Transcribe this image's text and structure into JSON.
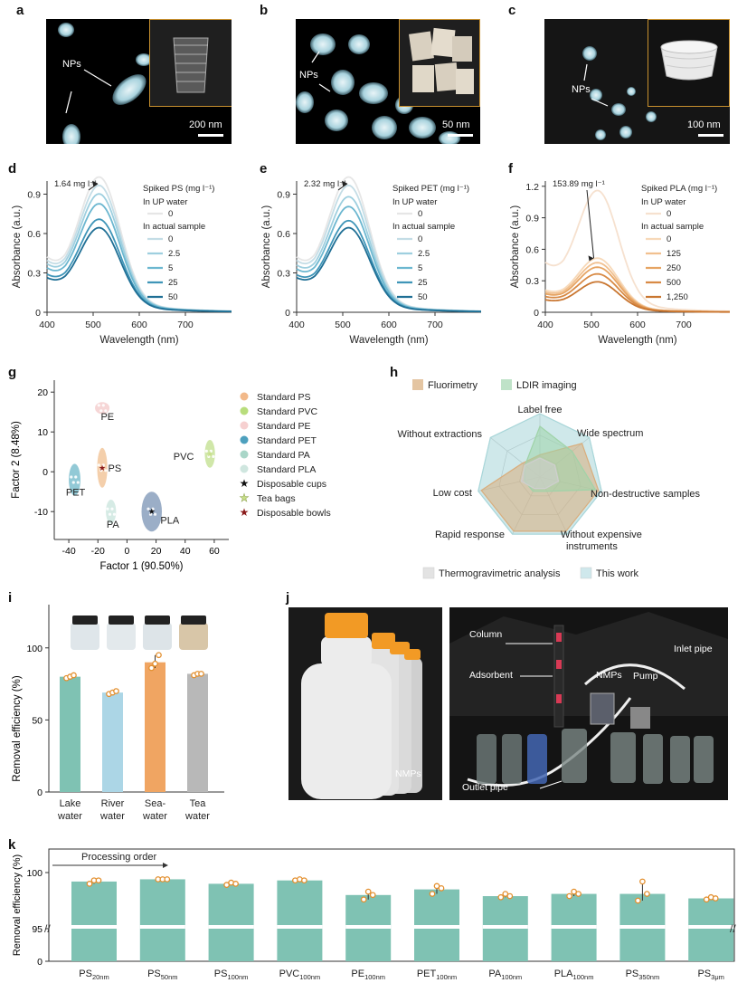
{
  "panel_labels": {
    "a": "a",
    "b": "b",
    "c": "c",
    "d": "d",
    "e": "e",
    "f": "f",
    "g": "g",
    "h": "h",
    "i": "i",
    "j": "j",
    "k": "k"
  },
  "micrographs": [
    {
      "label": "NPs",
      "scale": "200 nm"
    },
    {
      "label": "NPs",
      "scale": "50 nm"
    },
    {
      "label": "NPs",
      "scale": "100 nm"
    }
  ],
  "colors": {
    "d_series": [
      "#e6e6e6",
      "#c4dde6",
      "#9ecfdf",
      "#6cb7d0",
      "#3f95b8",
      "#1f6f95"
    ],
    "f_series": [
      "#f6e1cf",
      "#f7d9b9",
      "#f1c08f",
      "#e6a463",
      "#d88a45",
      "#c97630"
    ],
    "teal_bar": "#7fc2b3",
    "lightblue_bar": "#acd6e6",
    "orange_bar": "#f0a562",
    "grey_bar": "#b8b8b8",
    "dot_orange": "#e38f2e"
  },
  "chart_data": [
    {
      "id": "d",
      "type": "line",
      "xlabel": "Wavelength (nm)",
      "ylabel": "Absorbance (a.u.)",
      "xlim": [
        400,
        800
      ],
      "ylim": [
        0,
        1.0
      ],
      "xticks": [
        400,
        500,
        600,
        700
      ],
      "yticks": [
        0,
        0.3,
        0.6,
        0.9
      ],
      "legend_title": "Spiked PS (mg l⁻¹)",
      "legend_group1": "In UP water",
      "legend_group2": "In actual sample",
      "annotation": "1.64 mg l⁻¹",
      "series": [
        {
          "name": "0",
          "group": "In UP water",
          "peak": 0.96
        },
        {
          "name": "0",
          "group": "In actual sample",
          "peak": 0.9
        },
        {
          "name": "2.5",
          "group": "In actual sample",
          "peak": 0.84
        },
        {
          "name": "5",
          "group": "In actual sample",
          "peak": 0.77
        },
        {
          "name": "25",
          "group": "In actual sample",
          "peak": 0.66
        },
        {
          "name": "50",
          "group": "In actual sample",
          "peak": 0.6
        }
      ]
    },
    {
      "id": "e",
      "type": "line",
      "xlabel": "Wavelength (nm)",
      "ylabel": "Absorbance (a.u.)",
      "xlim": [
        400,
        800
      ],
      "ylim": [
        0,
        1.0
      ],
      "xticks": [
        400,
        500,
        600,
        700
      ],
      "yticks": [
        0,
        0.3,
        0.6,
        0.9
      ],
      "legend_title": "Spiked PET (mg l⁻¹)",
      "legend_group1": "In UP water",
      "legend_group2": "In actual sample",
      "annotation": "2.32 mg l⁻¹",
      "series": [
        {
          "name": "0",
          "group": "In UP water",
          "peak": 0.96
        },
        {
          "name": "0",
          "group": "In actual sample",
          "peak": 0.9
        },
        {
          "name": "2.5",
          "group": "In actual sample",
          "peak": 0.82
        },
        {
          "name": "5",
          "group": "In actual sample",
          "peak": 0.75
        },
        {
          "name": "25",
          "group": "In actual sample",
          "peak": 0.65
        },
        {
          "name": "50",
          "group": "In actual sample",
          "peak": 0.6
        }
      ]
    },
    {
      "id": "f",
      "type": "line",
      "xlabel": "Wavelength (nm)",
      "ylabel": "Absorbance (a.u.)",
      "xlim": [
        400,
        800
      ],
      "ylim": [
        0,
        1.25
      ],
      "xticks": [
        400,
        500,
        600,
        700
      ],
      "yticks": [
        0,
        0.3,
        0.6,
        0.9,
        1.2
      ],
      "legend_title": "Spiked PLA (mg l⁻¹)",
      "legend_group1": "In UP water",
      "legend_group2": "In actual sample",
      "annotation": "153.89 mg l⁻¹",
      "series": [
        {
          "name": "0",
          "group": "In UP water",
          "peak": 1.08
        },
        {
          "name": "0",
          "group": "In actual sample",
          "peak": 0.48
        },
        {
          "name": "125",
          "group": "In actual sample",
          "peak": 0.44
        },
        {
          "name": "250",
          "group": "In actual sample",
          "peak": 0.4
        },
        {
          "name": "500",
          "group": "In actual sample",
          "peak": 0.34
        },
        {
          "name": "1,250",
          "group": "In actual sample",
          "peak": 0.27
        }
      ]
    },
    {
      "id": "g",
      "type": "scatter",
      "xlabel": "Factor 1 (90.50%)",
      "ylabel": "Factor 2 (8.48%)",
      "xlim": [
        -50,
        70
      ],
      "ylim": [
        -17,
        23
      ],
      "xticks": [
        -40,
        -20,
        0,
        20,
        40,
        60
      ],
      "yticks": [
        -10,
        0,
        10,
        20
      ],
      "clusters": [
        {
          "name": "PE",
          "x": -17,
          "y": 16,
          "rx": 5,
          "ry": 1.5,
          "color": "#f4cfcf"
        },
        {
          "name": "PS",
          "x": -17,
          "y": 1,
          "rx": 3.5,
          "ry": 5,
          "color": "#f2c79c"
        },
        {
          "name": "PVC",
          "x": 57,
          "y": 4.5,
          "rx": 3.5,
          "ry": 3.5,
          "color": "#c8e39a"
        },
        {
          "name": "PET",
          "x": -36,
          "y": -2,
          "rx": 4,
          "ry": 4,
          "color": "#7fc0cf"
        },
        {
          "name": "PA",
          "x": -11,
          "y": -10,
          "rx": 3.5,
          "ry": 3,
          "color": "#cfe8e0"
        },
        {
          "name": "PLA",
          "x": 17,
          "y": -10,
          "rx": 7,
          "ry": 5,
          "color": "#8aa0bd"
        }
      ],
      "legend": [
        {
          "name": "Standard PS",
          "color": "#f2b98a",
          "marker": "circle"
        },
        {
          "name": "Standard PVC",
          "color": "#b8dd7c",
          "marker": "circle"
        },
        {
          "name": "Standard PE",
          "color": "#f6d0d0",
          "marker": "circle"
        },
        {
          "name": "Standard PET",
          "color": "#4da0be",
          "marker": "circle"
        },
        {
          "name": "Standard PA",
          "color": "#a9d6c8",
          "marker": "circle"
        },
        {
          "name": "Standard PLA",
          "color": "#cfe6df",
          "marker": "circle"
        },
        {
          "name": "Disposable cups",
          "color": "#111111",
          "marker": "star"
        },
        {
          "name": "Tea bags",
          "color": "#c9e08a",
          "marker": "star"
        },
        {
          "name": "Disposable bowls",
          "color": "#8a1a1a",
          "marker": "star"
        }
      ],
      "stars": [
        {
          "name": "Disposable cups",
          "x": 17,
          "y": -10
        },
        {
          "name": "Disposable bowls",
          "x": -17,
          "y": 1
        },
        {
          "name": "Tea bags",
          "x": 57,
          "y": 4.5
        }
      ]
    },
    {
      "id": "h",
      "type": "radar",
      "axes": [
        "Label free",
        "Wide spectrum",
        "Non-destructive samples",
        "Without expensive instruments",
        "Rapid response",
        "Low cost",
        "Without extractions"
      ],
      "legend_top": [
        {
          "name": "Fluorimetry",
          "color": "#e4c5a2"
        },
        {
          "name": "LDIR imaging",
          "color": "#bfe2c8"
        }
      ],
      "legend_bottom": [
        {
          "name": "Thermogravimetric analysis",
          "color": "#e3e3e3"
        },
        {
          "name": "This work",
          "color": "#cfe8ec"
        }
      ],
      "series": [
        {
          "name": "Fluorimetry",
          "values": [
            0.35,
            0.85,
            0.95,
            0.95,
            0.95,
            0.95,
            0.35
          ],
          "color": "#d9ad7c"
        },
        {
          "name": "LDIR imaging",
          "values": [
            0.8,
            0.65,
            0.9,
            0.25,
            0.25,
            0.25,
            0.3
          ],
          "color": "#9fd3a8"
        },
        {
          "name": "Thermogravimetric analysis",
          "values": [
            0.3,
            0.3,
            0.3,
            0.2,
            0.2,
            0.3,
            0.3
          ],
          "color": "#cfcfcf"
        },
        {
          "name": "This work",
          "values": [
            1,
            1,
            1,
            1,
            1,
            1,
            1
          ],
          "color": "#a8d6d9"
        }
      ]
    },
    {
      "id": "i",
      "type": "bar",
      "ylabel": "Removal efficiency (%)",
      "ylim": [
        0,
        130
      ],
      "yticks": [
        0,
        50,
        100
      ],
      "categories": [
        "Lake\nwater",
        "River\nwater",
        "Sea-\nwater",
        "Tea\nwater"
      ],
      "values": [
        80,
        69,
        90,
        82
      ],
      "points": [
        [
          79,
          80,
          81
        ],
        [
          68,
          69,
          70
        ],
        [
          86,
          89,
          95
        ],
        [
          81,
          82,
          82
        ]
      ]
    },
    {
      "id": "k",
      "type": "bar",
      "ylabel": "Removal efficiency (%)",
      "ylim": [
        95,
        100
      ],
      "yticks": [
        0,
        95,
        100
      ],
      "annotation": "Processing order",
      "categories": [
        {
          "main": "PS",
          "sub": "20nm"
        },
        {
          "main": "PS",
          "sub": "50nm"
        },
        {
          "main": "PS",
          "sub": "100nm"
        },
        {
          "main": "PVC",
          "sub": "100nm"
        },
        {
          "main": "PE",
          "sub": "100nm"
        },
        {
          "main": "PET",
          "sub": "100nm"
        },
        {
          "main": "PA",
          "sub": "100nm"
        },
        {
          "main": "PLA",
          "sub": "100nm"
        },
        {
          "main": "PS",
          "sub": "350nm"
        },
        {
          "main": "PS",
          "sub": "3μm"
        }
      ],
      "values": [
        99.2,
        99.4,
        99.0,
        99.3,
        98.0,
        98.5,
        97.9,
        98.1,
        98.1,
        97.7
      ],
      "points": [
        [
          99.0,
          99.3,
          99.3
        ],
        [
          99.4,
          99.4,
          99.4
        ],
        [
          98.9,
          99.1,
          99.0
        ],
        [
          99.3,
          99.4,
          99.3
        ],
        [
          97.6,
          98.3,
          98.0
        ],
        [
          98.1,
          98.8,
          98.6
        ],
        [
          97.8,
          98.1,
          97.9
        ],
        [
          97.9,
          98.3,
          98.1
        ],
        [
          97.5,
          99.2,
          98.1
        ],
        [
          97.6,
          97.8,
          97.7
        ]
      ]
    }
  ],
  "photo_j": {
    "left_label": "NMPs",
    "right_labels": [
      "Column",
      "Adsorbent",
      "NMPs",
      "Pump",
      "Inlet pipe",
      "Outlet pipe"
    ]
  }
}
